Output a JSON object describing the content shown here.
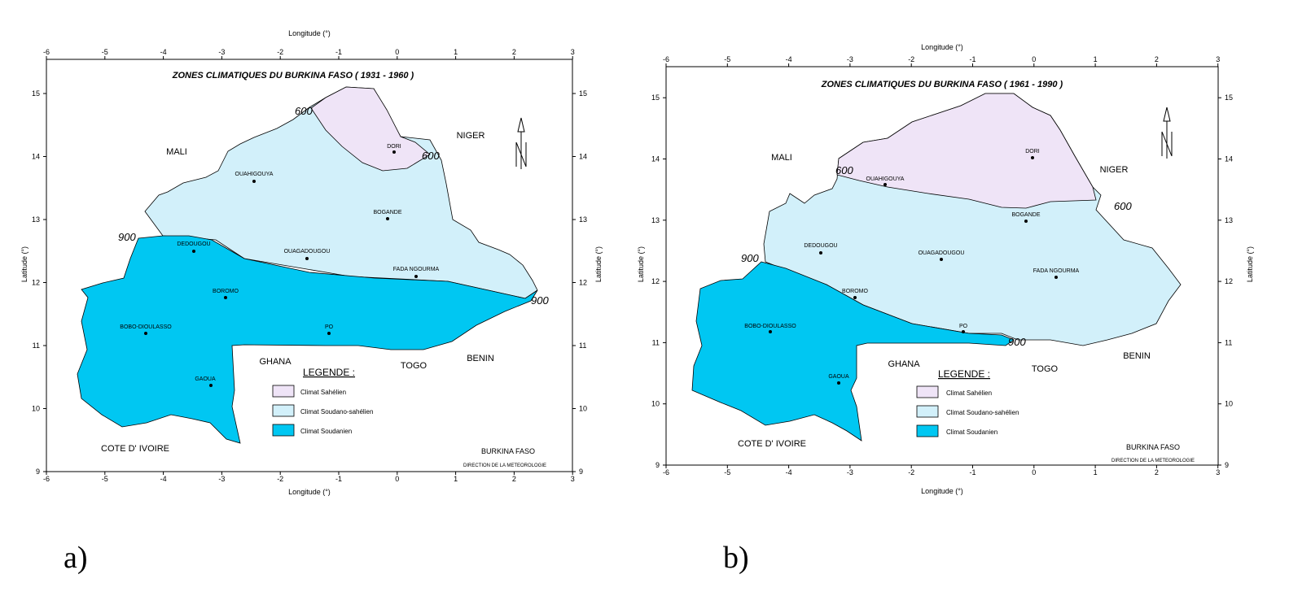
{
  "maps": [
    {
      "id": "a",
      "panel_label": "a)",
      "title": "ZONES CLIMATIQUES  DU  BURKINA FASO  ( 1931 - 1960 )",
      "axis_x_label": "Longitude (°)",
      "axis_y_label": "Latitude (°)",
      "x_ticks": [
        "-6",
        "-5",
        "-4",
        "-3",
        "-2",
        "-1",
        "0",
        "1",
        "2",
        "3"
      ],
      "y_ticks": [
        "9",
        "10",
        "11",
        "12",
        "13",
        "14",
        "15"
      ],
      "countries": [
        "MALI",
        "NIGER",
        "GHANA",
        "TOGO",
        "BENIN",
        "COTE D' IVOIRE"
      ],
      "cities": [
        "DORI",
        "OUAHIGOUYA",
        "BOGANDE",
        "DEDOUGOU",
        "OUAGADOUGOU",
        "FADA NGOURMA",
        "BOROMO",
        "BOBO-DIOULASSO",
        "PO",
        "GAOUA"
      ],
      "isohyets": [
        "600",
        "600",
        "900",
        "900"
      ],
      "legend_title": "LEGENDE :",
      "legend": [
        {
          "label": "Climat Sahélien",
          "color": "#efe4f7"
        },
        {
          "label": "Climat Soudano-sahélien",
          "color": "#d2f0fa"
        },
        {
          "label": "Climat Soudanien",
          "color": "#00c7f2"
        }
      ],
      "footer_country": "BURKINA FASO",
      "footer_credit": "DIRECTION DE LA METEOROLOGIE"
    },
    {
      "id": "b",
      "panel_label": "b)",
      "title": "ZONES CLIMATIQUES  DU  BURKINA FASO  ( 1961 - 1990 )",
      "axis_x_label": "Longitude (°)",
      "axis_y_label": "Latitude (°)",
      "x_ticks": [
        "-6",
        "-5",
        "-4",
        "-3",
        "-2",
        "-1",
        "0",
        "1",
        "2",
        "3"
      ],
      "y_ticks": [
        "9",
        "10",
        "11",
        "12",
        "13",
        "14",
        "15"
      ],
      "countries": [
        "MALI",
        "NIGER",
        "GHANA",
        "TOGO",
        "BENIN",
        "COTE D' IVOIRE"
      ],
      "cities": [
        "DORI",
        "OUAHIGOUYA",
        "BOGANDE",
        "DEDOUGOU",
        "OUAGADOUGOU",
        "FADA NGOURMA",
        "BOROMO",
        "BOBO-DIOULASSO",
        "PO",
        "GAOUA"
      ],
      "isohyets": [
        "600",
        "600",
        "900",
        "900"
      ],
      "legend_title": "LEGENDE :",
      "legend": [
        {
          "label": "Climat Sahélien",
          "color": "#efe4f7"
        },
        {
          "label": "Climat Soudano-sahélien",
          "color": "#d2f0fa"
        },
        {
          "label": "Climat Soudanien",
          "color": "#00c7f2"
        }
      ],
      "footer_country": "BURKINA FASO",
      "footer_credit": "DIRECTION DE LA METEOROLOGIE"
    }
  ]
}
